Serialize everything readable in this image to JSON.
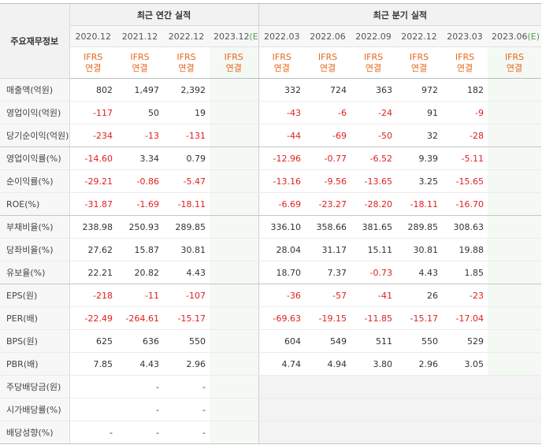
{
  "header": {
    "row_label": "주요재무정보",
    "annual_title": "최근 연간 실적",
    "quarter_title": "최근 분기 실적",
    "annual_periods": [
      "2020.12",
      "2021.12",
      "2022.12",
      "2023.12"
    ],
    "quarter_periods": [
      "2022.03",
      "2022.06",
      "2022.09",
      "2022.12",
      "2023.03",
      "2023.06"
    ],
    "estimate_mark": "(E)",
    "ifrs_line1": "IFRS",
    "ifrs_line2": "연결"
  },
  "colors": {
    "negative": "#e02020",
    "ifrs": "#e8661b",
    "estimate_bg": "#f4f9f4"
  },
  "rows": [
    {
      "label": "매출액(억원)",
      "annual": [
        "802",
        "1,497",
        "2,392",
        ""
      ],
      "quarter": [
        "332",
        "724",
        "363",
        "972",
        "182",
        ""
      ]
    },
    {
      "label": "영업이익(억원)",
      "annual": [
        "-117",
        "50",
        "19",
        ""
      ],
      "quarter": [
        "-43",
        "-6",
        "-24",
        "91",
        "-9",
        ""
      ]
    },
    {
      "label": "당기순이익(억원)",
      "annual": [
        "-234",
        "-13",
        "-131",
        ""
      ],
      "quarter": [
        "-44",
        "-69",
        "-50",
        "32",
        "-28",
        ""
      ]
    },
    {
      "label": "영업이익률(%)",
      "annual": [
        "-14.60",
        "3.34",
        "0.79",
        ""
      ],
      "quarter": [
        "-12.96",
        "-0.77",
        "-6.52",
        "9.39",
        "-5.11",
        ""
      ]
    },
    {
      "label": "순이익률(%)",
      "annual": [
        "-29.21",
        "-0.86",
        "-5.47",
        ""
      ],
      "quarter": [
        "-13.16",
        "-9.56",
        "-13.65",
        "3.25",
        "-15.65",
        ""
      ]
    },
    {
      "label": "ROE(%)",
      "annual": [
        "-31.87",
        "-1.69",
        "-18.11",
        ""
      ],
      "quarter": [
        "-6.69",
        "-23.27",
        "-28.20",
        "-18.11",
        "-16.70",
        ""
      ]
    },
    {
      "label": "부채비율(%)",
      "annual": [
        "238.98",
        "250.93",
        "289.85",
        ""
      ],
      "quarter": [
        "336.10",
        "358.66",
        "381.65",
        "289.85",
        "308.63",
        ""
      ]
    },
    {
      "label": "당좌비율(%)",
      "annual": [
        "27.62",
        "15.87",
        "30.81",
        ""
      ],
      "quarter": [
        "28.04",
        "31.17",
        "15.11",
        "30.81",
        "19.88",
        ""
      ]
    },
    {
      "label": "유보율(%)",
      "annual": [
        "22.21",
        "20.82",
        "4.43",
        ""
      ],
      "quarter": [
        "18.70",
        "7.37",
        "-0.73",
        "4.43",
        "1.85",
        ""
      ]
    },
    {
      "label": "EPS(원)",
      "annual": [
        "-218",
        "-11",
        "-107",
        ""
      ],
      "quarter": [
        "-36",
        "-57",
        "-41",
        "26",
        "-23",
        ""
      ]
    },
    {
      "label": "PER(배)",
      "annual": [
        "-22.49",
        "-264.61",
        "-15.17",
        ""
      ],
      "quarter": [
        "-69.63",
        "-19.15",
        "-11.85",
        "-15.17",
        "-17.04",
        ""
      ]
    },
    {
      "label": "BPS(원)",
      "annual": [
        "625",
        "636",
        "550",
        ""
      ],
      "quarter": [
        "604",
        "549",
        "511",
        "550",
        "529",
        ""
      ]
    },
    {
      "label": "PBR(배)",
      "annual": [
        "7.85",
        "4.43",
        "2.96",
        ""
      ],
      "quarter": [
        "4.74",
        "4.94",
        "3.80",
        "2.96",
        "3.05",
        ""
      ]
    },
    {
      "label": "주당배당금(원)",
      "annual": [
        "",
        "-",
        "-",
        ""
      ],
      "quarter": [
        "",
        "",
        "",
        "",
        "",
        ""
      ]
    },
    {
      "label": "시가배당률(%)",
      "annual": [
        "",
        "-",
        "-",
        ""
      ],
      "quarter": [
        "",
        "",
        "",
        "",
        "",
        ""
      ]
    },
    {
      "label": "배당성향(%)",
      "annual": [
        "-",
        "-",
        "-",
        ""
      ],
      "quarter": [
        "",
        "",
        "",
        "",
        "",
        ""
      ]
    }
  ]
}
